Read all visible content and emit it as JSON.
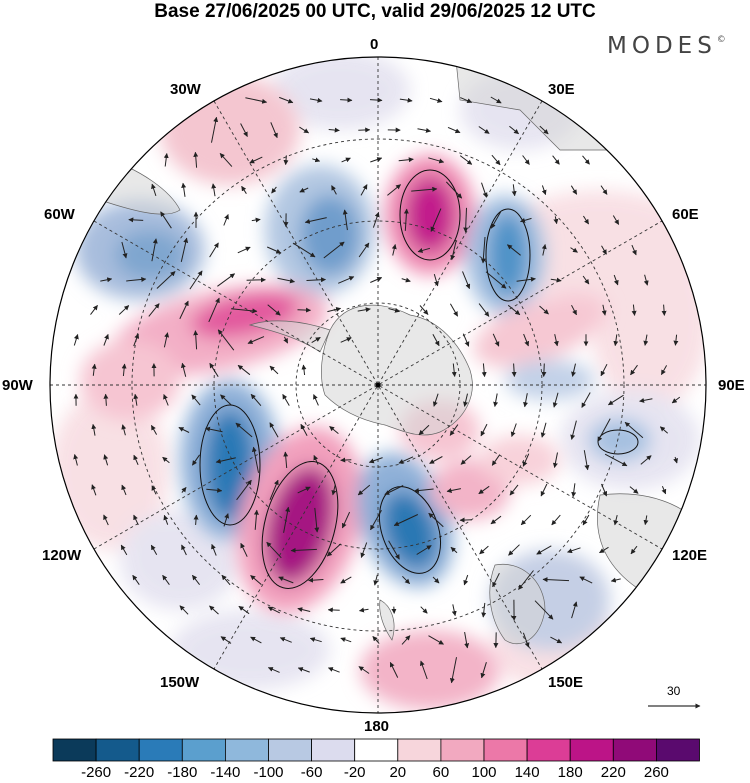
{
  "header": {
    "title": "Base 27/06/2025 00 UTC, valid 29/06/2025 12 UTC",
    "brand": "MODES",
    "brand_mark": "©"
  },
  "map": {
    "projection": "south-polar-stereographic",
    "longitude_labels": {
      "top": "0",
      "top_right": "30E",
      "upper_right": "60E",
      "right": "90E",
      "lower_right": "120E",
      "bottom_right": "150E",
      "bottom": "180",
      "bottom_left": "150W",
      "lower_left": "120W",
      "left": "90W",
      "upper_left": "60W",
      "top_left": "30W"
    },
    "reference_vector": {
      "label": "30",
      "value": 30
    }
  },
  "colorbar": {
    "levels": [
      "-260",
      "-220",
      "-180",
      "-140",
      "-100",
      "-60",
      "-20",
      "20",
      "60",
      "100",
      "140",
      "180",
      "220",
      "260"
    ],
    "colors": [
      "#0b3a5a",
      "#145a8c",
      "#2a7bb8",
      "#5b9fce",
      "#8fb8dc",
      "#b8c9e3",
      "#dcdcee",
      "#ffffff",
      "#f7d6dc",
      "#f2a9c0",
      "#ec78a8",
      "#dc3d96",
      "#bc1487",
      "#900a78",
      "#5a0a6e"
    ]
  }
}
